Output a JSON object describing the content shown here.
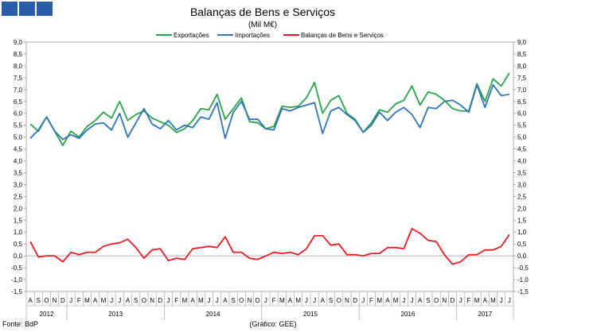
{
  "logo_color": "#2a5caa",
  "chart_data": {
    "type": "line",
    "title": "Balanças de Bens e Serviços",
    "subtitle": "(Mil M€)",
    "source": "Fonte: BdP",
    "credit": "(Gráfico: GEE)",
    "ylim": [
      -1.5,
      9.0
    ],
    "yticks": [
      "9,0",
      "8,5",
      "8,0",
      "7,5",
      "7,0",
      "6,5",
      "6,0",
      "5,5",
      "5,0",
      "4,5",
      "4,0",
      "3,5",
      "3,0",
      "2,5",
      "2,0",
      "1,5",
      "1,0",
      "0,5",
      "0,0",
      "-0,5",
      "-1,0",
      "-1,5"
    ],
    "months": [
      "A",
      "S",
      "O",
      "N",
      "D",
      "J",
      "F",
      "M",
      "A",
      "M",
      "J",
      "J",
      "A",
      "S",
      "O",
      "N",
      "D",
      "J",
      "F",
      "M",
      "A",
      "M",
      "J",
      "J",
      "A",
      "S",
      "O",
      "N",
      "D",
      "J",
      "F",
      "M",
      "A",
      "M",
      "J",
      "J",
      "A",
      "S",
      "O",
      "N",
      "D",
      "J",
      "F",
      "M",
      "A",
      "M",
      "J",
      "J",
      "A",
      "S",
      "O",
      "N",
      "D",
      "J",
      "F",
      "M",
      "A",
      "M",
      "J",
      "J"
    ],
    "years": [
      {
        "label": "2012",
        "start": 0,
        "count": 5
      },
      {
        "label": "2013",
        "start": 5,
        "count": 12
      },
      {
        "label": "2014",
        "start": 17,
        "count": 12
      },
      {
        "label": "2015",
        "start": 29,
        "count": 12
      },
      {
        "label": "2016",
        "start": 41,
        "count": 12
      },
      {
        "label": "2017",
        "start": 53,
        "count": 7
      }
    ],
    "series": [
      {
        "name": "Exportações",
        "color": "#2aa34a",
        "values": [
          5.55,
          5.25,
          5.85,
          5.25,
          4.65,
          5.25,
          5.0,
          5.45,
          5.7,
          6.05,
          5.8,
          6.5,
          5.7,
          5.95,
          6.1,
          5.8,
          5.65,
          5.5,
          5.2,
          5.35,
          5.7,
          6.2,
          6.15,
          6.8,
          5.75,
          6.2,
          6.65,
          5.65,
          5.6,
          5.35,
          5.45,
          6.3,
          6.25,
          6.3,
          6.65,
          7.3,
          6.0,
          6.55,
          6.75,
          6.0,
          5.75,
          5.2,
          5.6,
          6.15,
          6.05,
          6.4,
          6.55,
          7.15,
          6.35,
          6.9,
          6.8,
          6.55,
          6.2,
          6.1,
          6.1,
          7.25,
          6.5,
          7.45,
          7.15,
          7.7
        ]
      },
      {
        "name": "Importações",
        "color": "#2e75b6",
        "values": [
          4.95,
          5.3,
          5.85,
          5.25,
          4.9,
          5.1,
          4.95,
          5.3,
          5.55,
          5.6,
          5.3,
          6.0,
          5.0,
          5.6,
          6.2,
          5.55,
          5.35,
          5.7,
          5.3,
          5.5,
          5.4,
          5.85,
          5.75,
          6.45,
          4.95,
          6.05,
          6.5,
          5.75,
          5.75,
          5.35,
          5.3,
          6.2,
          6.1,
          6.25,
          6.35,
          6.45,
          5.15,
          6.1,
          6.25,
          5.95,
          5.7,
          5.2,
          5.5,
          6.05,
          5.7,
          6.05,
          6.25,
          5.95,
          5.4,
          6.25,
          6.2,
          6.5,
          6.55,
          6.35,
          6.05,
          7.2,
          6.25,
          7.2,
          6.75,
          6.8
        ]
      },
      {
        "name": "Balanças de Bens e Serviços",
        "color": "#e31e24",
        "values": [
          0.6,
          -0.05,
          0.0,
          0.0,
          -0.25,
          0.15,
          0.05,
          0.15,
          0.15,
          0.4,
          0.5,
          0.55,
          0.7,
          0.35,
          -0.1,
          0.25,
          0.3,
          -0.2,
          -0.1,
          -0.15,
          0.3,
          0.35,
          0.4,
          0.35,
          0.8,
          0.15,
          0.15,
          -0.1,
          -0.15,
          0.0,
          0.15,
          0.1,
          0.15,
          0.05,
          0.3,
          0.85,
          0.85,
          0.45,
          0.5,
          0.05,
          0.05,
          0.0,
          0.1,
          0.1,
          0.35,
          0.35,
          0.3,
          1.15,
          0.95,
          0.65,
          0.6,
          0.05,
          -0.35,
          -0.25,
          0.05,
          0.05,
          0.25,
          0.25,
          0.4,
          0.9
        ]
      }
    ]
  }
}
